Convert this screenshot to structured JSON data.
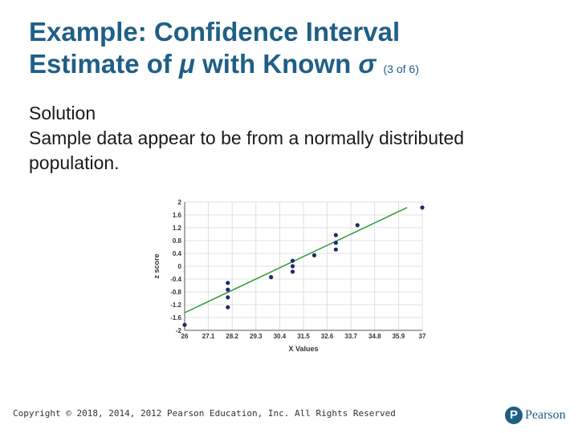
{
  "slide": {
    "title_line1": "Example: Confidence Interval",
    "title_line2_pre": "Estimate of ",
    "title_mu": "μ",
    "title_mid": " with Known ",
    "title_sigma": "σ",
    "title_suffix": "(3 of 6)",
    "body_line1": "Solution",
    "body_line2": "Sample data appear to be from a normally distributed population."
  },
  "chart_data": {
    "type": "scatter",
    "xlabel": "X Values",
    "ylabel": "z score",
    "xlim": [
      26,
      37
    ],
    "ylim": [
      -2,
      2
    ],
    "x_ticks": [
      "26",
      "27.1",
      "28.2",
      "29.3",
      "30.4",
      "31.5",
      "32.6",
      "33.7",
      "34.8",
      "35.9",
      "37"
    ],
    "y_ticks": [
      "2",
      "1.6",
      "1.2",
      "0.8",
      "0.4",
      "0",
      "-0.4",
      "-0.8",
      "-1.2",
      "-1.6",
      "-2"
    ],
    "grid": true,
    "series": [
      {
        "points": [
          {
            "x": 26.0,
            "y": -1.83
          },
          {
            "x": 28.0,
            "y": -1.28
          },
          {
            "x": 28.0,
            "y": -0.97
          },
          {
            "x": 28.0,
            "y": -0.73
          },
          {
            "x": 28.0,
            "y": -0.52
          },
          {
            "x": 30.0,
            "y": -0.34
          },
          {
            "x": 31.0,
            "y": -0.17
          },
          {
            "x": 31.0,
            "y": 0.0
          },
          {
            "x": 31.0,
            "y": 0.17
          },
          {
            "x": 32.0,
            "y": 0.34
          },
          {
            "x": 33.0,
            "y": 0.52
          },
          {
            "x": 33.0,
            "y": 0.73
          },
          {
            "x": 33.0,
            "y": 0.97
          },
          {
            "x": 34.0,
            "y": 1.28
          },
          {
            "x": 37.0,
            "y": 1.83
          }
        ],
        "color": "#1f2a6b"
      }
    ],
    "trend_line": {
      "x": [
        26.0,
        36.3
      ],
      "y": [
        -1.45,
        1.83
      ],
      "color": "#2e9a3a"
    }
  },
  "footer": {
    "copyright": "Copyright © 2018, 2014, 2012 Pearson Education, Inc. All Rights Reserved",
    "logo_text": "Pearson",
    "logo_mark": "P"
  }
}
